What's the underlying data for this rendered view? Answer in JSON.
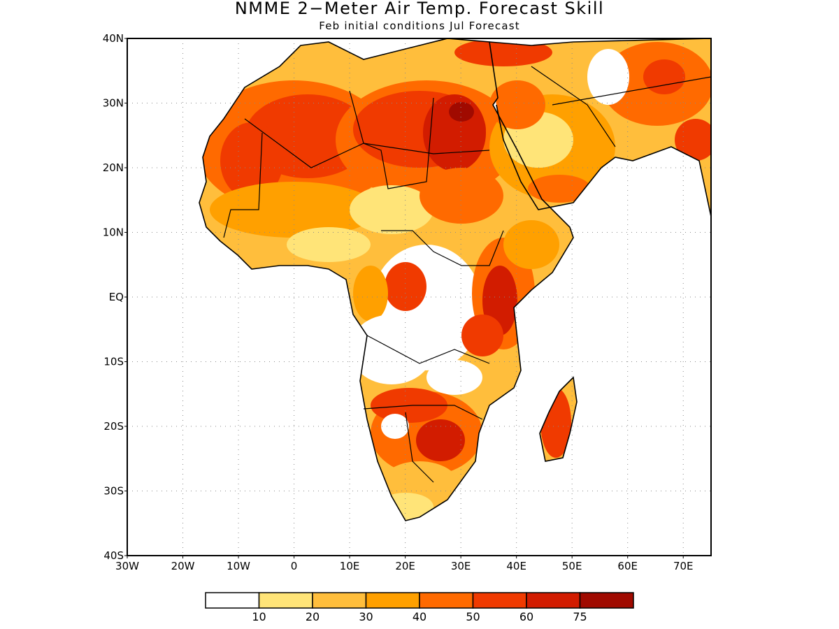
{
  "header": {
    "title": "NMME 2−Meter Air Temp. Forecast Skill",
    "subtitle": "Feb initial conditions  Jul Forecast"
  },
  "axes": {
    "lat_labels": [
      "40N",
      "30N",
      "20N",
      "10N",
      "EQ",
      "10S",
      "20S",
      "30S",
      "40S"
    ],
    "lon_labels": [
      "30W",
      "20W",
      "10W",
      "0",
      "10E",
      "20E",
      "30E",
      "40E",
      "50E",
      "60E",
      "70E"
    ],
    "lat_values": [
      40,
      30,
      20,
      10,
      0,
      -10,
      -20,
      -30,
      -40
    ],
    "lon_values": [
      -30,
      -20,
      -10,
      0,
      10,
      20,
      30,
      40,
      50,
      60,
      70
    ],
    "lon_range": [
      -30,
      75
    ],
    "lat_range": [
      -40,
      40
    ]
  },
  "colorbar": {
    "colors": [
      "#ffffff",
      "#ffe478",
      "#ffbe3c",
      "#ffa000",
      "#ff6a00",
      "#f03a00",
      "#d21c00",
      "#a00a00"
    ],
    "labels": [
      "10",
      "20",
      "30",
      "40",
      "50",
      "60",
      "75"
    ]
  },
  "regions": [
    {
      "name": "sahara-west",
      "color": "#f03a00"
    },
    {
      "name": "sahara-east",
      "color": "#d21c00"
    },
    {
      "name": "egypt-max",
      "color": "#a00a00"
    },
    {
      "name": "arabia",
      "color": "#ff6a00"
    },
    {
      "name": "east-africa",
      "color": "#d21c00"
    },
    {
      "name": "southern-africa",
      "color": "#f03a00"
    },
    {
      "name": "madagascar",
      "color": "#f03a00"
    }
  ]
}
